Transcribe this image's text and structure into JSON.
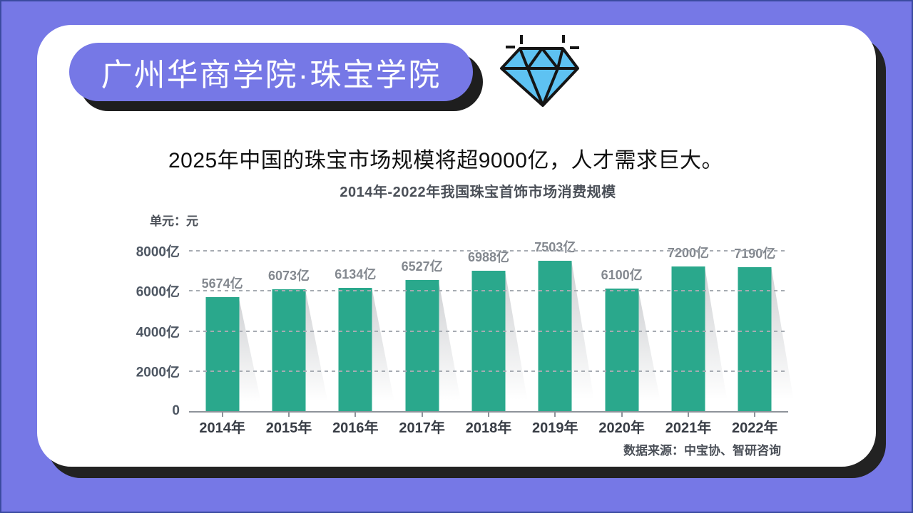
{
  "header": {
    "title": "广州华商学院·珠宝学院"
  },
  "main_title": "2025年中国的珠宝市场规模将超9000亿，人才需求巨大。",
  "chart_data": {
    "type": "bar",
    "title": "2014年-2022年我国珠宝首饰市场消费规模",
    "unit_label": "单元：元",
    "categories": [
      "2014年",
      "2015年",
      "2016年",
      "2017年",
      "2018年",
      "2019年",
      "2020年",
      "2021年",
      "2022年"
    ],
    "values": [
      5674,
      6073,
      6134,
      6527,
      6988,
      7503,
      6100,
      7200,
      7190
    ],
    "value_label_suffix": "亿",
    "ylabel_ticks": [
      "8000亿",
      "6000亿",
      "4000亿",
      "2000亿",
      "0"
    ],
    "ytick_values": [
      8000,
      6000,
      4000,
      2000,
      0
    ],
    "ylim": [
      0,
      8000
    ],
    "grid": "horizontal-dashed",
    "legend": "none",
    "bar_color": "#2AA88C",
    "source": "数据来源：中宝协、智研咨询"
  },
  "colors": {
    "background_purple": "#7678E6",
    "edge_navy": "#3B4BA0",
    "card_white": "#FFFFFF",
    "shadow_black": "#222222",
    "bar_green": "#2AA88C",
    "diamond_blue": "#5EC2F2",
    "chart_text_gray": "#4B5058"
  },
  "icons": {
    "diamond": "diamond-icon",
    "sparkles": "sparkle-dashes-icon"
  }
}
